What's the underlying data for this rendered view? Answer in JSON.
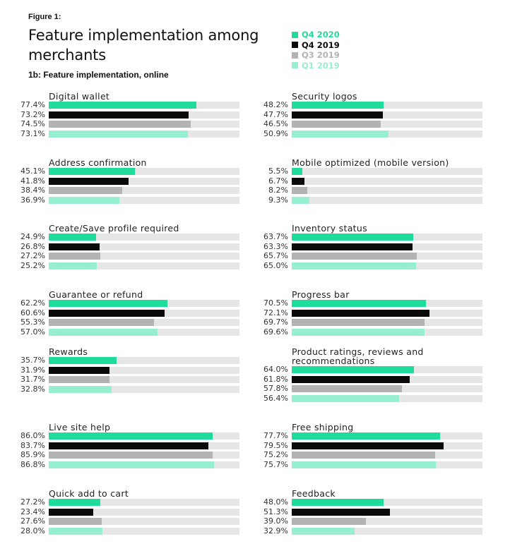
{
  "figure_label": "Figure 1:",
  "title": "Feature implementation among merchants",
  "subtitle": "1b: Feature implementation, online",
  "legend": [
    {
      "name": "Q4 2020",
      "color": "#1fdc9c",
      "text_color": "#1fdc9c"
    },
    {
      "name": "Q4 2019",
      "color": "#0a0a0a",
      "text_color": "#0a0a0a"
    },
    {
      "name": "Q3 2019",
      "color": "#b3b3b3",
      "text_color": "#b3b3b3"
    },
    {
      "name": "Q1 2019",
      "color": "#97efcf",
      "text_color": "#97efcf"
    }
  ],
  "chart_data": {
    "type": "bar",
    "orientation": "horizontal",
    "xlim": [
      0,
      100
    ],
    "unit": "%",
    "series_names": [
      "Q4 2020",
      "Q4 2019",
      "Q3 2019",
      "Q1 2019"
    ],
    "panels": [
      {
        "title": "Digital wallet",
        "values": [
          77.4,
          73.2,
          74.5,
          73.1
        ],
        "labels": [
          "77.4%",
          "73.2%",
          "74.5%",
          "73.1%"
        ]
      },
      {
        "title": "Security logos",
        "values": [
          48.2,
          47.7,
          46.5,
          50.9
        ],
        "labels": [
          "48.2%",
          "47.7%",
          "46.5%",
          "50.9%"
        ]
      },
      {
        "title": "Address confirmation",
        "values": [
          45.1,
          41.8,
          38.4,
          36.9
        ],
        "labels": [
          "45.1%",
          "41.8%",
          "38.4%",
          "36.9%"
        ]
      },
      {
        "title": "Mobile optimized (mobile version)",
        "values": [
          5.5,
          6.7,
          8.2,
          9.3
        ],
        "labels": [
          "5.5%",
          "6.7%",
          "8.2%",
          "9.3%"
        ]
      },
      {
        "title": "Create/Save profile required",
        "values": [
          24.9,
          26.8,
          27.2,
          25.2
        ],
        "labels": [
          "24.9%",
          "26.8%",
          "27.2%",
          "25.2%"
        ]
      },
      {
        "title": "Inventory status",
        "values": [
          63.7,
          63.3,
          65.7,
          65.0
        ],
        "labels": [
          "63.7%",
          "63.3%",
          "65.7%",
          "65.0%"
        ]
      },
      {
        "title": "Guarantee or refund",
        "values": [
          62.2,
          60.6,
          55.3,
          57.0
        ],
        "labels": [
          "62.2%",
          "60.6%",
          "55.3%",
          "57.0%"
        ]
      },
      {
        "title": "Progress bar",
        "values": [
          70.5,
          72.1,
          69.7,
          69.6
        ],
        "labels": [
          "70.5%",
          "72.1%",
          "69.7%",
          "69.6%"
        ]
      },
      {
        "title": "Rewards",
        "values": [
          35.7,
          31.9,
          31.7,
          32.8
        ],
        "labels": [
          "35.7%",
          "31.9%",
          "31.7%",
          "32.8%"
        ]
      },
      {
        "title": "Product ratings, reviews and recommendations",
        "values": [
          64.0,
          61.8,
          57.8,
          56.4
        ],
        "labels": [
          "64.0%",
          "61.8%",
          "57.8%",
          "56.4%"
        ]
      },
      {
        "title": "Live site help",
        "values": [
          86.0,
          83.7,
          85.9,
          86.8
        ],
        "labels": [
          "86.0%",
          "83.7%",
          "85.9%",
          "86.8%"
        ]
      },
      {
        "title": "Free shipping",
        "values": [
          77.7,
          79.5,
          75.2,
          75.7
        ],
        "labels": [
          "77.7%",
          "79.5%",
          "75.2%",
          "75.7%"
        ]
      },
      {
        "title": "Quick add to cart",
        "values": [
          27.2,
          23.4,
          27.6,
          28.0
        ],
        "labels": [
          "27.2%",
          "23.4%",
          "27.6%",
          "28.0%"
        ]
      },
      {
        "title": "Feedback",
        "values": [
          48.0,
          51.3,
          39.0,
          32.9
        ],
        "labels": [
          "48.0%",
          "51.3%",
          "39.0%",
          "32.9%"
        ]
      }
    ]
  }
}
